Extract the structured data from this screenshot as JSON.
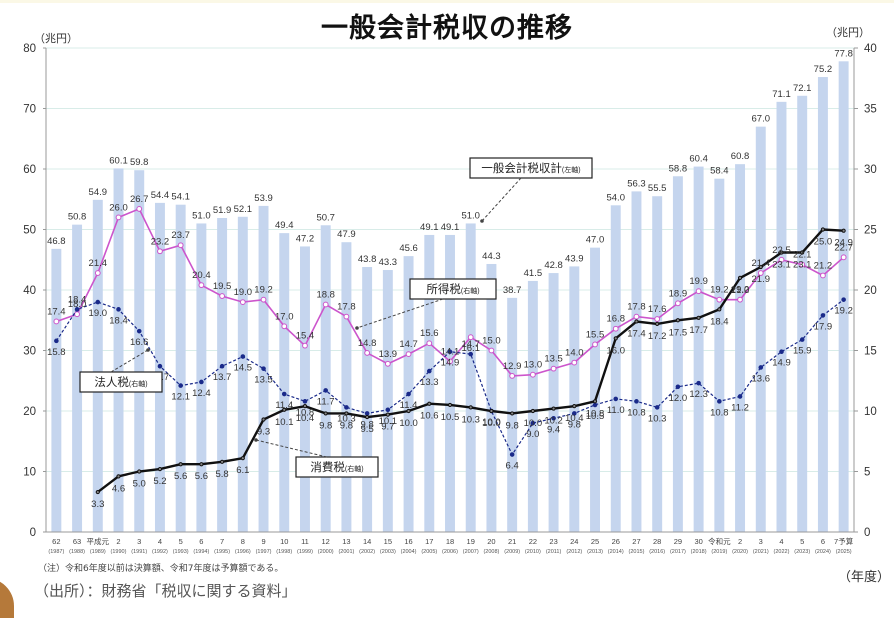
{
  "header": {
    "title": "一般会計税収の推移"
  },
  "axes": {
    "left_unit": "（兆円）",
    "right_unit": "（兆円）",
    "x_unit": "（年度）"
  },
  "footer": {
    "note": "（注）令和6年度以前は決算額、令和7年度は予算額である。",
    "source": "（出所）：財務省「税収に関する資料」"
  },
  "colors": {
    "bar": "#c5d5ee",
    "income_tax": "#cc55cc",
    "corporate_tax": "#1a2a8a",
    "consumption_tax": "#111111",
    "grid": "#d8ece8"
  },
  "chart_data": {
    "type": "bar",
    "title": "一般会計税収の推移",
    "xlabel": "（年度）",
    "ylabel": "（兆円）",
    "y2label": "（兆円）",
    "ylim": [
      0,
      80
    ],
    "y2lim": [
      0,
      40
    ],
    "yticks": [
      0,
      10,
      20,
      30,
      40,
      50,
      60,
      70,
      80
    ],
    "y2ticks": [
      0,
      5,
      10,
      15,
      20,
      25,
      30,
      35,
      40
    ],
    "grid": true,
    "categories": [
      "62",
      "63",
      "平成元",
      "2",
      "3",
      "4",
      "5",
      "6",
      "7",
      "8",
      "9",
      "10",
      "11",
      "12",
      "13",
      "14",
      "15",
      "16",
      "17",
      "18",
      "19",
      "20",
      "21",
      "22",
      "23",
      "24",
      "25",
      "26",
      "27",
      "28",
      "29",
      "30",
      "令和元",
      "2",
      "3",
      "4",
      "5",
      "6",
      "7予算"
    ],
    "western_years": [
      "(1987)",
      "(1988)",
      "(1989)",
      "(1990)",
      "(1991)",
      "(1992)",
      "(1993)",
      "(1994)",
      "(1995)",
      "(1996)",
      "(1997)",
      "(1998)",
      "(1999)",
      "(2000)",
      "(2001)",
      "(2002)",
      "(2003)",
      "(2004)",
      "(2005)",
      "(2006)",
      "(2007)",
      "(2008)",
      "(2009)",
      "(2010)",
      "(2011)",
      "(2012)",
      "(2013)",
      "(2014)",
      "(2015)",
      "(2016)",
      "(2017)",
      "(2018)",
      "(2019)",
      "(2020)",
      "(2021)",
      "(2022)",
      "(2023)",
      "(2024)",
      "(2025)"
    ],
    "series": [
      {
        "name": "一般会計税収計",
        "axis": "left",
        "kind": "bar",
        "label": "一般会計税収計",
        "label_suffix": "(左軸)",
        "values": [
          46.8,
          50.8,
          54.9,
          60.1,
          59.8,
          54.4,
          54.1,
          51.0,
          51.9,
          52.1,
          53.9,
          49.4,
          47.2,
          50.7,
          47.9,
          43.8,
          43.3,
          45.6,
          49.1,
          49.1,
          51.0,
          44.3,
          38.7,
          41.5,
          42.8,
          43.9,
          47.0,
          54.0,
          56.3,
          55.5,
          58.8,
          60.4,
          58.4,
          60.8,
          67.0,
          71.1,
          72.1,
          75.2,
          77.8
        ]
      },
      {
        "name": "所得税",
        "axis": "right",
        "kind": "line",
        "label": "所得税",
        "label_suffix": "(右軸)",
        "values": [
          17.4,
          18.0,
          21.4,
          26.0,
          26.7,
          23.2,
          23.7,
          20.4,
          19.5,
          19.0,
          19.2,
          17.0,
          15.4,
          18.8,
          17.8,
          14.8,
          13.9,
          14.7,
          15.6,
          14.1,
          16.1,
          15.0,
          12.9,
          13.0,
          13.5,
          14.0,
          15.5,
          16.8,
          17.8,
          17.6,
          18.9,
          19.9,
          19.2,
          19.2,
          21.4,
          22.5,
          22.1,
          21.2,
          22.7
        ]
      },
      {
        "name": "法人税",
        "axis": "right",
        "kind": "dashed-line",
        "label": "法人税",
        "label_suffix": "(右軸)",
        "values": [
          15.8,
          18.4,
          19.0,
          18.4,
          16.6,
          13.7,
          12.1,
          12.4,
          13.7,
          14.5,
          13.5,
          11.4,
          10.8,
          11.7,
          10.3,
          9.8,
          10.1,
          11.4,
          13.3,
          14.9,
          14.7,
          10.0,
          6.4,
          9.0,
          9.4,
          9.8,
          10.5,
          11.0,
          10.8,
          10.3,
          12.0,
          12.3,
          10.8,
          11.2,
          13.6,
          14.9,
          15.9,
          17.9,
          19.2
        ]
      },
      {
        "name": "消費税",
        "axis": "right",
        "kind": "thick-line",
        "label": "消費税",
        "label_suffix": "(右軸)",
        "values": [
          null,
          null,
          3.3,
          4.6,
          5.0,
          5.2,
          5.6,
          5.6,
          5.8,
          6.1,
          9.3,
          10.1,
          10.4,
          9.8,
          9.8,
          9.5,
          9.7,
          10.0,
          10.6,
          10.5,
          10.3,
          10.0,
          9.8,
          10.0,
          10.2,
          10.4,
          10.8,
          16.0,
          17.4,
          17.2,
          17.5,
          17.7,
          18.4,
          21.0,
          21.9,
          23.1,
          23.1,
          25.0,
          24.9
        ]
      }
    ]
  }
}
